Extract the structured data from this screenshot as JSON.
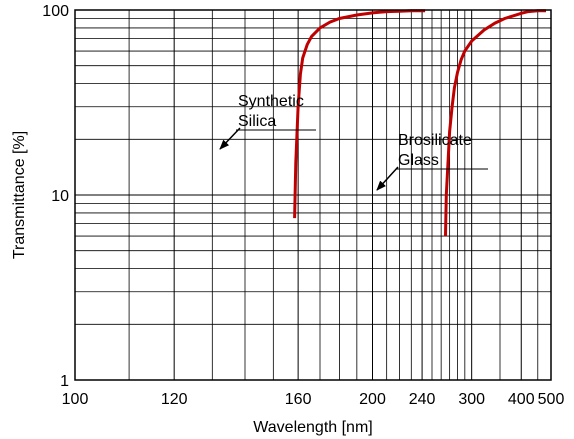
{
  "chart_data": {
    "type": "line",
    "title": "",
    "xlabel": "Wavelength [nm]",
    "ylabel": "Transmittance [%]",
    "x_scale": "reciprocal",
    "y_scale": "log",
    "xlim": [
      100,
      500
    ],
    "ylim": [
      1,
      100
    ],
    "grid": true,
    "x_major_ticks": [
      100,
      120,
      160,
      200,
      240,
      300,
      400,
      500
    ],
    "x_minor_ticks": [
      110,
      130,
      140,
      150,
      170,
      180,
      190,
      210,
      220,
      230,
      250,
      260,
      270,
      280,
      290,
      350,
      450
    ],
    "y_major_ticks": [
      1,
      10,
      100
    ],
    "y_minor_ticks": [
      2,
      3,
      4,
      5,
      6,
      7,
      8,
      9,
      20,
      30,
      40,
      50,
      60,
      70,
      80,
      90
    ],
    "x_tick_labels": [
      "100",
      "120",
      "160",
      "200",
      "240",
      "300",
      "400",
      "500"
    ],
    "y_tick_labels": [
      "1",
      "10",
      "100"
    ],
    "series": [
      {
        "name": "Synthetic Silica",
        "color": "#c00000",
        "x": [
          158.5,
          159,
          160,
          161,
          162,
          164,
          166,
          170,
          175,
          180,
          190,
          200,
          210,
          220,
          230,
          240,
          243
        ],
        "y": [
          7.5,
          15,
          30,
          45,
          55,
          65,
          72,
          80,
          86,
          90,
          94,
          96.5,
          98,
          98.5,
          99,
          99,
          99
        ]
      },
      {
        "name": "Brosilicate Glass",
        "color": "#c00000",
        "x": [
          265,
          266,
          268,
          270,
          273,
          276,
          280,
          285,
          290,
          300,
          320,
          340,
          360,
          380,
          400,
          420,
          450,
          480
        ],
        "y": [
          6,
          10,
          15,
          22,
          30,
          38,
          46,
          54,
          60,
          68,
          78,
          85,
          90,
          93,
          96,
          98,
          99,
          99
        ]
      }
    ],
    "annotations": [
      {
        "lines": [
          "Synthetic",
          "Silica"
        ],
        "points_to": "Synthetic Silica"
      },
      {
        "lines": [
          "Brosilicate",
          "Glass"
        ],
        "points_to": "Brosilicate Glass"
      }
    ]
  }
}
